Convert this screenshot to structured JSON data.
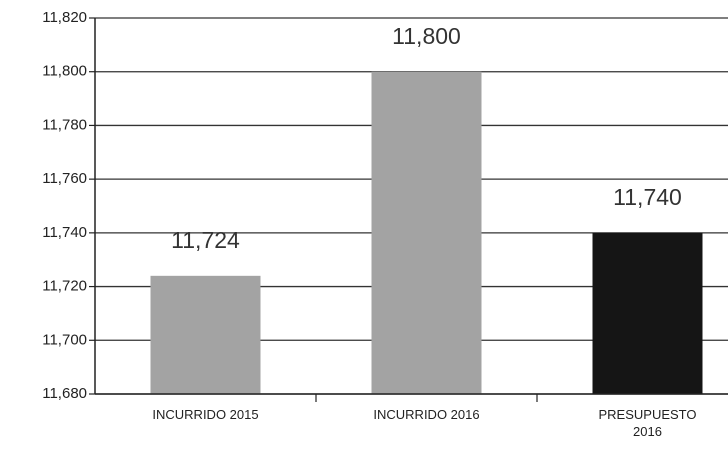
{
  "chart_data": {
    "type": "bar",
    "categories": [
      "INCURRIDO 2015",
      "INCURRIDO  2016",
      "PRESUPUESTO 2016"
    ],
    "values": [
      11724,
      11800,
      11740
    ],
    "value_labels": [
      "11,724",
      "11,800",
      "11,740"
    ],
    "colors": [
      "#a3a3a3",
      "#a3a3a3",
      "#151515"
    ],
    "ylim": [
      11680,
      11820
    ],
    "yticks": [
      {
        "value": 11680,
        "label": "11,680"
      },
      {
        "value": 11700,
        "label": "11,700"
      },
      {
        "value": 11720,
        "label": "11,720"
      },
      {
        "value": 11740,
        "label": "11,740"
      },
      {
        "value": 11760,
        "label": "11,760"
      },
      {
        "value": 11780,
        "label": "11,780"
      },
      {
        "value": 11800,
        "label": "11,800"
      },
      {
        "value": 11820,
        "label": "11,820"
      }
    ],
    "grid": true
  }
}
